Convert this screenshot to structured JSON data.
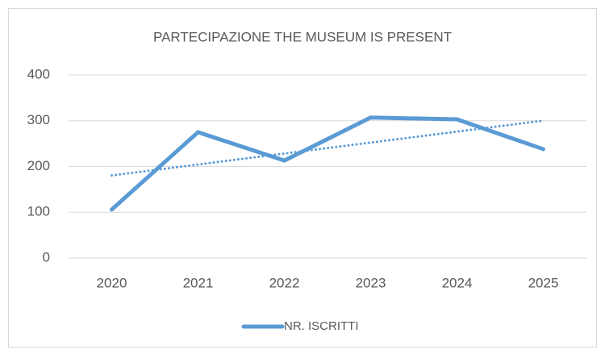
{
  "chart_data": {
    "type": "line",
    "title": "PARTECIPAZIONE THE MUSEUM IS PRESENT",
    "categories": [
      "2020",
      "2021",
      "2022",
      "2023",
      "2024",
      "2025"
    ],
    "series": [
      {
        "name": "NR. ISCRITTI",
        "color": "#5b9bd5",
        "values": [
          106,
          275,
          213,
          307,
          303,
          238
        ]
      }
    ],
    "ylim": [
      0,
      400
    ],
    "yticks": [
      0,
      100,
      200,
      300,
      400
    ],
    "grid": true,
    "trendline": true,
    "legend": "bottom"
  }
}
